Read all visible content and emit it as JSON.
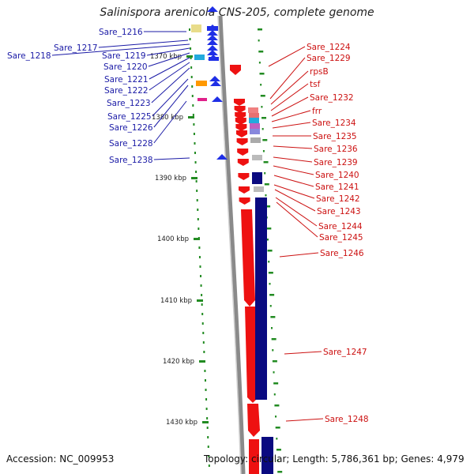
{
  "title": "Salinispora arenicola CNS-205, complete genome",
  "accession": "Accession: NC_009953",
  "summary": "Topology: circular; Length: 5,786,361 bp; Genes: 4,979",
  "scale_labels": [
    "1370 kbp",
    "1380 kbp",
    "1390 kbp",
    "1400 kbp",
    "1410 kbp",
    "1420 kbp",
    "1430 kbp"
  ],
  "left_genes": [
    "Sare_1216",
    "Sare_1217",
    "Sare_1218",
    "Sare_1219",
    "Sare_1220",
    "Sare_1221",
    "Sare_1222",
    "Sare_1223",
    "Sare_1225",
    "Sare_1226",
    "Sare_1228",
    "Sare_1238"
  ],
  "right_genes": [
    "Sare_1224",
    "Sare_1229",
    "rpsB",
    "tsf",
    "Sare_1232",
    "frr",
    "Sare_1234",
    "Sare_1235",
    "Sare_1236",
    "Sare_1239",
    "Sare_1240",
    "Sare_1241",
    "Sare_1242",
    "Sare_1243",
    "Sare_1244",
    "Sare_1245",
    "Sare_1246",
    "Sare_1247",
    "Sare_1248"
  ],
  "colors": {
    "left_label": "#1a1aa6",
    "right_label": "#cc1111",
    "forward_strand": "#ee1111",
    "reverse_strand": "#0a0a80",
    "backbone": "#8a8a8a",
    "tick": "#228b22"
  }
}
